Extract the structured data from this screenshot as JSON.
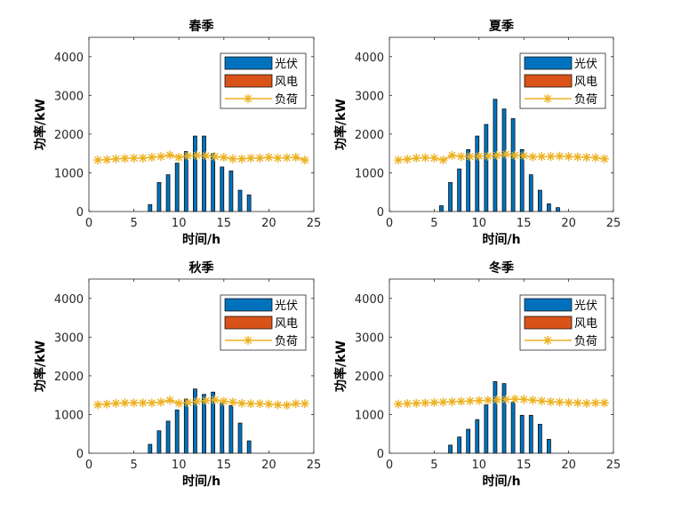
{
  "colors": {
    "pv": "#0072BD",
    "wind": "#D95319",
    "load": "#EDB120",
    "axis": "#262626"
  },
  "chart_data": [
    {
      "type": "bar",
      "title": "春季",
      "xlabel": "时间/h",
      "ylabel": "功率/kW",
      "xlim": [
        0,
        25
      ],
      "ylim": [
        0,
        4500
      ],
      "xticks": [
        0,
        5,
        10,
        15,
        20,
        25
      ],
      "yticks": [
        0,
        1000,
        2000,
        3000,
        4000
      ],
      "legend_position": "top-right",
      "x": [
        1,
        2,
        3,
        4,
        5,
        6,
        7,
        8,
        9,
        10,
        11,
        12,
        13,
        14,
        15,
        16,
        17,
        18,
        19,
        20,
        21,
        22,
        23,
        24
      ],
      "series": [
        {
          "name": "光伏",
          "kind": "bar",
          "values": [
            0,
            0,
            0,
            0,
            0,
            0,
            180,
            750,
            950,
            1250,
            1550,
            1950,
            1950,
            1500,
            1150,
            1050,
            550,
            430,
            0,
            0,
            0,
            0,
            0,
            0
          ]
        },
        {
          "name": "风电",
          "kind": "bar",
          "values": [
            0,
            0,
            0,
            0,
            0,
            0,
            0,
            0,
            0,
            0,
            0,
            0,
            0,
            0,
            0,
            0,
            0,
            0,
            0,
            0,
            0,
            0,
            0,
            0
          ]
        },
        {
          "name": "负荷",
          "kind": "line",
          "values": [
            1330,
            1340,
            1360,
            1370,
            1380,
            1380,
            1400,
            1420,
            1460,
            1400,
            1440,
            1450,
            1440,
            1420,
            1400,
            1360,
            1360,
            1380,
            1380,
            1400,
            1380,
            1390,
            1400,
            1330
          ]
        }
      ]
    },
    {
      "type": "bar",
      "title": "夏季",
      "xlabel": "时间/h",
      "ylabel": "功率/kW",
      "xlim": [
        0,
        25
      ],
      "ylim": [
        0,
        4500
      ],
      "xticks": [
        0,
        5,
        10,
        15,
        20,
        25
      ],
      "yticks": [
        0,
        1000,
        2000,
        3000,
        4000
      ],
      "legend_position": "top-right",
      "x": [
        1,
        2,
        3,
        4,
        5,
        6,
        7,
        8,
        9,
        10,
        11,
        12,
        13,
        14,
        15,
        16,
        17,
        18,
        19,
        20,
        21,
        22,
        23,
        24
      ],
      "series": [
        {
          "name": "光伏",
          "kind": "bar",
          "values": [
            0,
            0,
            0,
            0,
            0,
            150,
            750,
            1100,
            1600,
            1950,
            2250,
            2900,
            2650,
            2400,
            1600,
            950,
            550,
            200,
            100,
            0,
            0,
            0,
            0,
            0
          ]
        },
        {
          "name": "风电",
          "kind": "bar",
          "values": [
            0,
            0,
            0,
            0,
            0,
            0,
            0,
            0,
            0,
            0,
            0,
            0,
            0,
            0,
            0,
            0,
            0,
            0,
            0,
            0,
            0,
            0,
            0,
            0
          ]
        },
        {
          "name": "负荷",
          "kind": "line",
          "values": [
            1330,
            1350,
            1380,
            1390,
            1380,
            1330,
            1450,
            1420,
            1420,
            1430,
            1430,
            1450,
            1480,
            1450,
            1440,
            1410,
            1420,
            1420,
            1430,
            1420,
            1410,
            1400,
            1390,
            1360
          ]
        }
      ]
    },
    {
      "type": "bar",
      "title": "秋季",
      "xlabel": "时间/h",
      "ylabel": "功率/kW",
      "xlim": [
        0,
        25
      ],
      "ylim": [
        0,
        4500
      ],
      "xticks": [
        0,
        5,
        10,
        15,
        20,
        25
      ],
      "yticks": [
        0,
        1000,
        2000,
        3000,
        4000
      ],
      "legend_position": "top-right",
      "x": [
        1,
        2,
        3,
        4,
        5,
        6,
        7,
        8,
        9,
        10,
        11,
        12,
        13,
        14,
        15,
        16,
        17,
        18,
        19,
        20,
        21,
        22,
        23,
        24
      ],
      "series": [
        {
          "name": "光伏",
          "kind": "bar",
          "values": [
            0,
            0,
            0,
            0,
            0,
            0,
            230,
            580,
            830,
            1120,
            1400,
            1660,
            1520,
            1580,
            1300,
            1230,
            780,
            320,
            0,
            0,
            0,
            0,
            0,
            0
          ]
        },
        {
          "name": "风电",
          "kind": "bar",
          "values": [
            0,
            0,
            0,
            0,
            0,
            0,
            0,
            0,
            0,
            0,
            0,
            0,
            0,
            0,
            0,
            0,
            0,
            0,
            0,
            0,
            0,
            0,
            0,
            0
          ]
        },
        {
          "name": "负荷",
          "kind": "line",
          "values": [
            1250,
            1270,
            1290,
            1300,
            1300,
            1300,
            1300,
            1320,
            1370,
            1290,
            1310,
            1340,
            1360,
            1380,
            1340,
            1320,
            1290,
            1280,
            1280,
            1270,
            1250,
            1240,
            1280,
            1280
          ]
        }
      ]
    },
    {
      "type": "bar",
      "title": "冬季",
      "xlabel": "时间/h",
      "ylabel": "功率/kW",
      "xlim": [
        0,
        25
      ],
      "ylim": [
        0,
        4500
      ],
      "xticks": [
        0,
        5,
        10,
        15,
        20,
        25
      ],
      "yticks": [
        0,
        1000,
        2000,
        3000,
        4000
      ],
      "legend_position": "top-right",
      "x": [
        1,
        2,
        3,
        4,
        5,
        6,
        7,
        8,
        9,
        10,
        11,
        12,
        13,
        14,
        15,
        16,
        17,
        18,
        19,
        20,
        21,
        22,
        23,
        24
      ],
      "series": [
        {
          "name": "光伏",
          "kind": "bar",
          "values": [
            0,
            0,
            0,
            0,
            0,
            0,
            210,
            420,
            620,
            870,
            1250,
            1850,
            1800,
            1320,
            980,
            980,
            750,
            360,
            0,
            0,
            0,
            0,
            0,
            0
          ]
        },
        {
          "name": "风电",
          "kind": "bar",
          "values": [
            0,
            0,
            0,
            0,
            0,
            0,
            0,
            0,
            0,
            0,
            0,
            0,
            0,
            0,
            0,
            0,
            0,
            0,
            0,
            0,
            0,
            0,
            0,
            0
          ]
        },
        {
          "name": "负荷",
          "kind": "line",
          "values": [
            1270,
            1280,
            1290,
            1300,
            1310,
            1320,
            1330,
            1340,
            1350,
            1360,
            1370,
            1380,
            1390,
            1400,
            1390,
            1370,
            1350,
            1330,
            1320,
            1310,
            1300,
            1290,
            1300,
            1300
          ]
        }
      ]
    }
  ]
}
